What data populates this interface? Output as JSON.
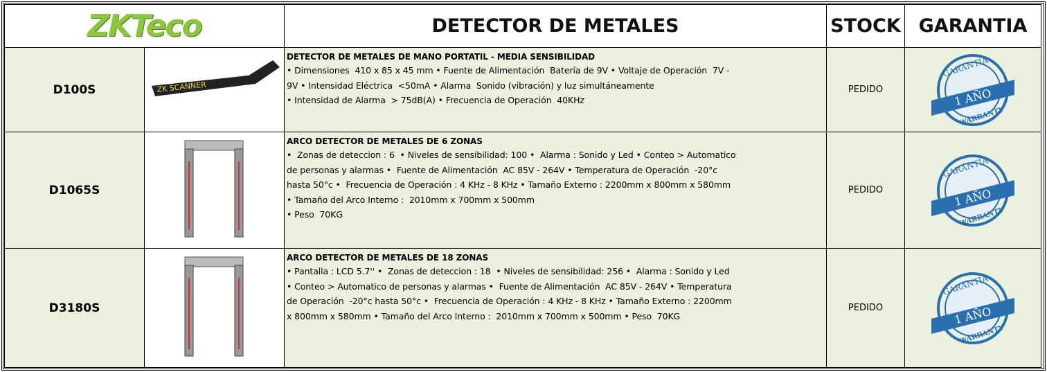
{
  "header": {
    "logo": "ZKTeco",
    "title": "DETECTOR DE METALES",
    "stock": "STOCK",
    "warranty": "GARANTIA"
  },
  "rows": [
    {
      "model": "D100S",
      "image_text": "ZK SCANNER",
      "desc_title": "DETECTOR DE METALES DE MANO PORTATIL - MEDIA SENSIBILIDAD",
      "desc_lines": [
        "• Dimensiones  410 x 85 x 45 mm • Fuente de Alimentación  Batería de 9V • Voltaje de Operación  7V -",
        "9V • Intensidad Eléctrica  <50mA • Alarma  Sonido (vibración) y luz simultáneamente",
        "• Intensidad de Alarma  > 75dB(A) • Frecuencia de Operación  40KHz"
      ],
      "stock": "PEDIDO",
      "badge": {
        "top": "GARANTIA",
        "middle": "1 AÑO",
        "bottom": "WARRANTY"
      }
    },
    {
      "model": "D1065S",
      "desc_title": "ARCO DETECTOR DE METALES DE 6 ZONAS",
      "desc_lines": [
        "•  Zonas de deteccion : 6  • Niveles de sensibilidad: 100 •  Alarma : Sonido y Led • Conteo > Automatico",
        "de personas y alarmas •  Fuente de Alimentación  AC 85V - 264V • Temperatura de Operación  -20°c",
        "hasta 50°c •  Frecuencia de Operación : 4 KHz - 8 KHz • Tamaño Externo : 2200mm x 800mm x 580mm",
        "• Tamaño del Arco Interno :  2010mm x 700mm x 500mm",
        "• Peso  70KG"
      ],
      "stock": "PEDIDO",
      "badge": {
        "top": "GARANTIA",
        "middle": "1 AÑO",
        "bottom": "WARRANTY"
      }
    },
    {
      "model": "D3180S",
      "desc_title": "ARCO DETECTOR DE METALES DE 18 ZONAS",
      "desc_lines": [
        "• Pantalla : LCD 5.7'' •  Zonas de deteccion : 18  • Niveles de sensibilidad: 256 •  Alarma : Sonido y Led",
        "• Conteo > Automatico de personas y alarmas •  Fuente de Alimentación  AC 85V - 264V • Temperatura",
        "de Operación  -20°c hasta 50°c •  Frecuencia de Operación : 4 KHz - 8 KHz • Tamaño Externo : 2200mm",
        "x 800mm x 580mm • Tamaño del Arco Interno :  2010mm x 700mm x 500mm • Peso  70KG"
      ],
      "stock": "PEDIDO",
      "badge": {
        "top": "GARANTIA",
        "middle": "1 AÑO",
        "bottom": "WARRANTY"
      }
    }
  ]
}
